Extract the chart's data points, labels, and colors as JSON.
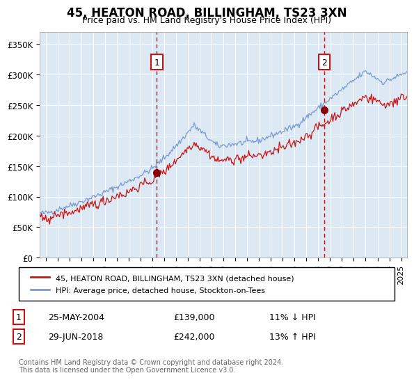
{
  "title": "45, HEATON ROAD, BILLINGHAM, TS23 3XN",
  "subtitle": "Price paid vs. HM Land Registry's House Price Index (HPI)",
  "ylabel_ticks": [
    "£0",
    "£50K",
    "£100K",
    "£150K",
    "£200K",
    "£250K",
    "£300K",
    "£350K"
  ],
  "ytick_values": [
    0,
    50000,
    100000,
    150000,
    200000,
    250000,
    300000,
    350000
  ],
  "ylim": [
    0,
    370000
  ],
  "xlim_start": 1994.5,
  "xlim_end": 2025.5,
  "bg_color": "#dce9f5",
  "line1_color": "#cc1111",
  "line2_color": "#7799cc",
  "dot1_color": "#880000",
  "dot2_color": "#880000",
  "marker1_x": 2004.38,
  "marker1_y": 139000,
  "marker2_x": 2018.5,
  "marker2_y": 242000,
  "legend_line1": "45, HEATON ROAD, BILLINGHAM, TS23 3XN (detached house)",
  "legend_line2": "HPI: Average price, detached house, Stockton-on-Tees",
  "anno1_date": "25-MAY-2004",
  "anno1_price": "£139,000",
  "anno1_hpi": "11% ↓ HPI",
  "anno2_date": "29-JUN-2018",
  "anno2_price": "£242,000",
  "anno2_hpi": "13% ↑ HPI",
  "footnote1": "Contains HM Land Registry data © Crown copyright and database right 2024.",
  "footnote2": "This data is licensed under the Open Government Licence v3.0.",
  "xticks": [
    1995,
    1996,
    1997,
    1998,
    1999,
    2000,
    2001,
    2002,
    2003,
    2004,
    2005,
    2006,
    2007,
    2008,
    2009,
    2010,
    2011,
    2012,
    2013,
    2014,
    2015,
    2016,
    2017,
    2018,
    2019,
    2020,
    2021,
    2022,
    2023,
    2024,
    2025
  ],
  "seed": 42
}
